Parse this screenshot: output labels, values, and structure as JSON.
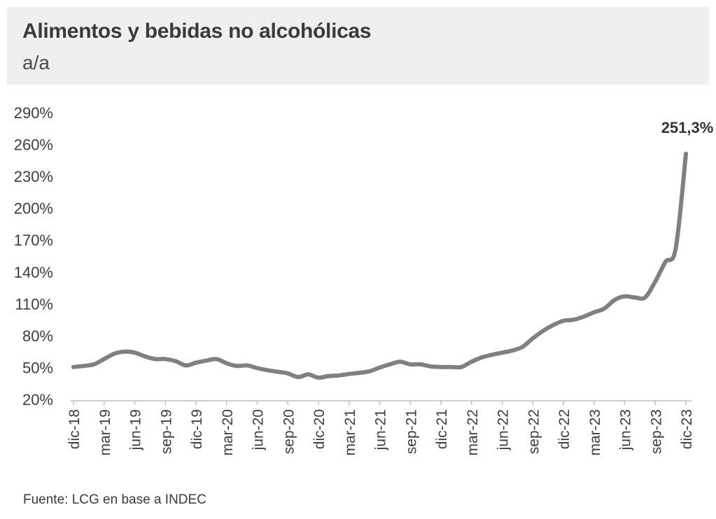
{
  "header": {
    "title": "Alimentos y bebidas no alcohólicas",
    "subtitle": "a/a"
  },
  "source": "Fuente: LCG en base a INDEC",
  "chart_data": {
    "type": "line",
    "title": "Alimentos y bebidas no alcohólicas",
    "subtitle": "a/a",
    "xlabel": "",
    "ylabel": "",
    "ylim": [
      20,
      290
    ],
    "yticks": [
      "20%",
      "50%",
      "80%",
      "110%",
      "140%",
      "170%",
      "200%",
      "230%",
      "260%",
      "290%"
    ],
    "ytick_values": [
      20,
      50,
      80,
      110,
      140,
      170,
      200,
      230,
      260,
      290
    ],
    "xtick_labels": [
      "dic-18",
      "mar-19",
      "jun-19",
      "sep-19",
      "dic-19",
      "mar-20",
      "jun-20",
      "sep-20",
      "dic-20",
      "mar-21",
      "jun-21",
      "sep-21",
      "dic-21",
      "mar-22",
      "jun-22",
      "sep-22",
      "dic-22",
      "mar-23",
      "jun-23",
      "sep-23",
      "dic-23"
    ],
    "grid": false,
    "legend": "none",
    "line_color": "#808080",
    "annotation": "251,3%",
    "x": [
      "dic-18",
      "ene-19",
      "feb-19",
      "mar-19",
      "abr-19",
      "may-19",
      "jun-19",
      "jul-19",
      "ago-19",
      "sep-19",
      "oct-19",
      "nov-19",
      "dic-19",
      "ene-20",
      "feb-20",
      "mar-20",
      "abr-20",
      "may-20",
      "jun-20",
      "jul-20",
      "ago-20",
      "sep-20",
      "oct-20",
      "nov-20",
      "dic-20",
      "ene-21",
      "feb-21",
      "mar-21",
      "abr-21",
      "may-21",
      "jun-21",
      "jul-21",
      "ago-21",
      "sep-21",
      "oct-21",
      "nov-21",
      "dic-21",
      "ene-22",
      "feb-22",
      "mar-22",
      "abr-22",
      "may-22",
      "jun-22",
      "jul-22",
      "ago-22",
      "sep-22",
      "oct-22",
      "nov-22",
      "dic-22",
      "ene-23",
      "feb-23",
      "mar-23",
      "abr-23",
      "may-23",
      "jun-23",
      "jul-23",
      "ago-23",
      "sep-23",
      "oct-23",
      "nov-23",
      "dic-23"
    ],
    "series": [
      {
        "values": [
          50.5,
          51.5,
          53,
          58,
          63,
          65,
          64,
          60.5,
          58,
          58,
          56,
          52,
          54.5,
          56.5,
          58,
          54,
          51.5,
          52,
          49.5,
          47.5,
          46,
          44.5,
          41,
          43.5,
          40.5,
          42,
          42.5,
          44,
          45,
          46.5,
          50,
          53,
          55.5,
          53,
          53,
          51,
          50.5,
          50.5,
          50.5,
          55.5,
          59.5,
          62,
          64,
          66,
          69.5,
          77.5,
          84.5,
          90,
          94,
          95,
          98,
          102,
          105.5,
          113.5,
          117,
          116,
          116,
          131,
          149.5,
          162,
          251.3
        ]
      }
    ]
  }
}
